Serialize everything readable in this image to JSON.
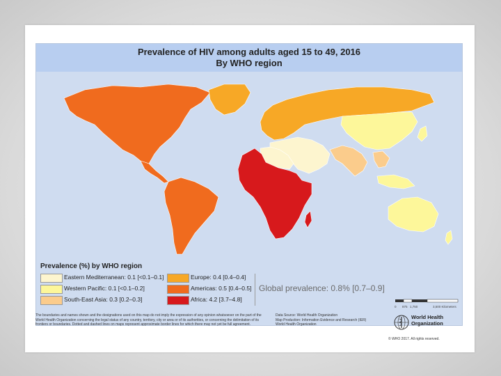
{
  "title": {
    "line1": "Prevalence of HIV among adults aged 15 to 49, 2016",
    "line2": "By WHO region"
  },
  "legend": {
    "title": "Prevalence (%) by WHO region",
    "items": [
      {
        "label": "Eastern Mediterranean: 0.1 [<0.1–0.1]",
        "color": "#fdf5cf"
      },
      {
        "label": "Western Pacific: 0.1 [<0.1–0.2]",
        "color": "#fdf79a"
      },
      {
        "label": "South-East Asia: 0.3 [0.2–0.3]",
        "color": "#fbcc8c"
      },
      {
        "label": "Europe: 0.4 [0.4–0.4]",
        "color": "#f7a826"
      },
      {
        "label": "Americas: 0.5 [0.4–0.5]",
        "color": "#f06b1e"
      },
      {
        "label": "Africa: 4.2 [3.7–4.8]",
        "color": "#d7191c"
      }
    ]
  },
  "global_prevalence": "Global prevalence: 0.8% [0.7–0.9]",
  "scale": {
    "ticks": [
      "0",
      "875",
      "1,750",
      "3,500 Kilometers"
    ]
  },
  "disclaimer": "The boundaries and names shown and the designations used on this map do not imply the expression of any opinion whatsoever on the part of the World Health Organization concerning the legal status of any country, territory, city or area or of its authorities, or concerning the delimitation of its frontiers or boundaries. Dotted and dashed lines on maps represent approximate border lines for which there may not yet be full agreement.",
  "credits": {
    "line1": "Data Source: World Health Organization",
    "line2": "Map Production: Information Evidence and Research (IER)",
    "line3": "World Health Organization"
  },
  "organization": {
    "line1": "World Health",
    "line2": "Organization"
  },
  "copyright": "© WHO 2017. All rights reserved."
}
